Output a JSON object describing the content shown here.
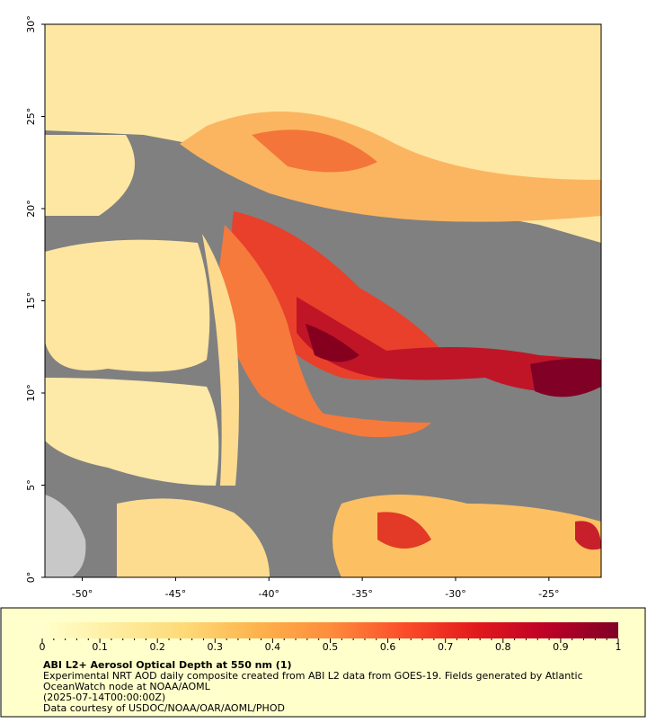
{
  "map": {
    "xlim": [
      -52,
      -22.2
    ],
    "ylim": [
      0,
      30
    ],
    "xticks": [
      {
        "value": -50,
        "label": "-50°"
      },
      {
        "value": -45,
        "label": "-45°"
      },
      {
        "value": -40,
        "label": "-40°"
      },
      {
        "value": -35,
        "label": "-35°"
      },
      {
        "value": -30,
        "label": "-30°"
      },
      {
        "value": -25,
        "label": "-25°"
      }
    ],
    "yticks": [
      {
        "value": 0,
        "label": "0°"
      },
      {
        "value": 5,
        "label": "5°"
      },
      {
        "value": 10,
        "label": "10°"
      },
      {
        "value": 15,
        "label": "15°"
      },
      {
        "value": 20,
        "label": "20°"
      },
      {
        "value": 25,
        "label": "25°"
      },
      {
        "value": 30,
        "label": "30°"
      }
    ]
  },
  "colorbar": {
    "range": [
      0,
      1
    ],
    "ticks": [
      0,
      0.1,
      0.2,
      0.3,
      0.4,
      0.5,
      0.6,
      0.7,
      0.8,
      0.9,
      1
    ],
    "colors": [
      "#ffffcc",
      "#ffeda0",
      "#fed976",
      "#feb24c",
      "#fd8d3c",
      "#fc4e2a",
      "#e31a1c",
      "#bd0026",
      "#800026"
    ]
  },
  "caption": {
    "title": "ABI L2+ Aerosol Optical Depth at 550 nm (1)",
    "lines": [
      "Experimental NRT AOD daily composite created from ABI L2 data from GOES-19. Fields generated by Atlantic",
      "OceanWatch node at NOAA/AOML",
      "(2025-07-14T00:00:00Z)",
      "Data courtesy of USDOC/NOAA/OAR/AOML/PHOD"
    ]
  }
}
